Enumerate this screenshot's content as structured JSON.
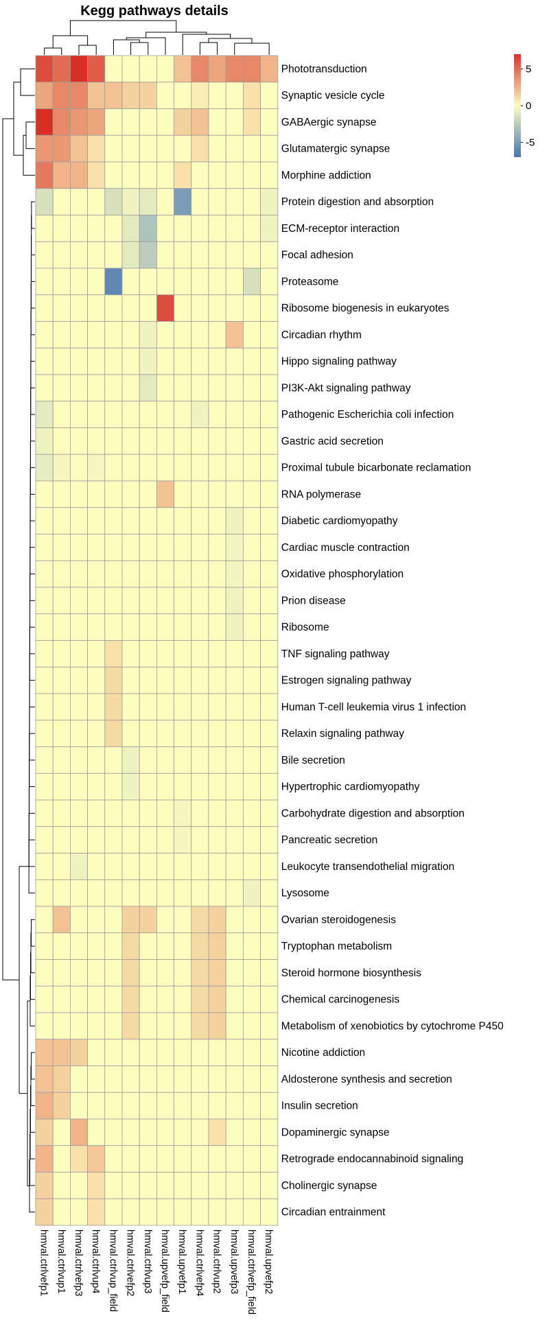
{
  "chart_data": {
    "type": "heatmap",
    "title": "Kegg pathways details",
    "columns": [
      "hmval.ctrlvefp1",
      "hmval.ctrlvup1",
      "hmval.ctrlvefp3",
      "hmval.ctrlvup4",
      "hmval.ctrlvup_field",
      "hmval.ctrlvefp2",
      "hmval.ctrlvup3",
      "hmval.upvefp_field",
      "hmval.upvefp1",
      "hmval.ctrlvefp4",
      "hmval.ctrlvup2",
      "hmval.upvefp3",
      "hmval.ctrlvefp_field",
      "hmval.upvefp2"
    ],
    "rows": [
      "Phototransduction",
      "Synaptic vesicle cycle",
      "GABAergic synapse",
      "Glutamatergic synapse",
      "Morphine addiction",
      "Protein digestion and absorption",
      "ECM-receptor interaction",
      "Focal adhesion",
      "Proteasome",
      "Ribosome biogenesis in eukaryotes",
      "Circadian rhythm",
      "Hippo signaling pathway",
      "PI3K-Akt signaling pathway",
      "Pathogenic Escherichia coli infection",
      "Gastric acid secretion",
      "Proximal tubule bicarbonate reclamation",
      "RNA polymerase",
      "Diabetic cardiomyopathy",
      "Cardiac muscle contraction",
      "Oxidative phosphorylation",
      "Prion disease",
      "Ribosome",
      "TNF signaling pathway",
      "Estrogen signaling pathway",
      "Human T-cell leukemia virus 1 infection",
      "Relaxin signaling pathway",
      "Bile secretion",
      "Hypertrophic cardiomyopathy",
      "Carbohydrate digestion and absorption",
      "Pancreatic secretion",
      "Leukocyte transendothelial migration",
      "Lysosome",
      "Ovarian steroidogenesis",
      "Tryptophan metabolism",
      "Steroid hormone biosynthesis",
      "Chemical carcinogenesis",
      "Metabolism of xenobiotics by cytochrome P450",
      "Nicotine addiction",
      "Aldosterone synthesis and secretion",
      "Insulin secretion",
      "Dopaminergic synapse",
      "Retrograde endocannabinoid signaling",
      "Cholinergic synapse",
      "Circadian entrainment"
    ],
    "values": [
      [
        6.0,
        5.0,
        7.0,
        5.5,
        0,
        0,
        0,
        0,
        2.0,
        4.0,
        3.0,
        4.0,
        4.0,
        2.5
      ],
      [
        3.0,
        4.0,
        4.0,
        2.0,
        2.0,
        1.5,
        1.5,
        0,
        0,
        0.5,
        0,
        0,
        1.0,
        0
      ],
      [
        7.0,
        4.0,
        3.5,
        3.0,
        0,
        0,
        0,
        0,
        1.5,
        2.0,
        0,
        0,
        1.0,
        0
      ],
      [
        3.5,
        3.5,
        2.0,
        1.0,
        0,
        0,
        0,
        0,
        0,
        1.0,
        0,
        0,
        0,
        0
      ],
      [
        4.5,
        2.5,
        2.5,
        1.0,
        0,
        0,
        0,
        0,
        1.0,
        0,
        0,
        0,
        0,
        0
      ],
      [
        -1.5,
        0,
        0,
        0,
        -1.5,
        -0.5,
        -1.0,
        0,
        -5.0,
        0,
        0,
        0,
        0,
        -0.5
      ],
      [
        0,
        0,
        0,
        0,
        0,
        -1.0,
        -3.0,
        0,
        0,
        0,
        0,
        0,
        0,
        -0.5
      ],
      [
        0,
        0,
        0,
        0,
        0,
        -1.0,
        -2.5,
        0,
        0,
        0,
        0,
        0,
        0,
        0
      ],
      [
        0,
        0,
        0,
        0,
        -6.0,
        0,
        0,
        0,
        0,
        0,
        0,
        0,
        -1.5,
        0
      ],
      [
        0,
        0,
        0,
        0,
        0,
        0,
        0,
        6.0,
        0,
        0,
        0,
        0,
        0,
        0
      ],
      [
        0,
        0,
        0,
        0,
        0,
        0,
        -0.5,
        0,
        0,
        0,
        0,
        2.0,
        0,
        0
      ],
      [
        0,
        0,
        0,
        0,
        0,
        0,
        -0.5,
        0,
        0,
        0,
        0,
        0,
        0,
        0
      ],
      [
        0,
        0,
        0,
        0,
        0,
        0,
        -1.0,
        0,
        0,
        0,
        0,
        0,
        0,
        0
      ],
      [
        -1.0,
        0,
        0,
        0,
        0,
        0,
        0,
        0,
        0,
        -0.5,
        0,
        0,
        0,
        0
      ],
      [
        -0.5,
        0,
        0,
        0,
        0,
        0,
        0,
        0,
        0,
        0,
        0,
        0,
        0,
        0
      ],
      [
        -0.8,
        -0.3,
        0,
        -0.3,
        0,
        0,
        0,
        0,
        0,
        0,
        0,
        0,
        0,
        0
      ],
      [
        0,
        0,
        0,
        0,
        0,
        0,
        0,
        2.0,
        0,
        0,
        0,
        0,
        0,
        0
      ],
      [
        0,
        0,
        0,
        0,
        0,
        0,
        0,
        0,
        0,
        0,
        0,
        -0.5,
        0,
        0
      ],
      [
        0,
        0,
        0,
        0,
        0,
        0,
        0,
        0,
        0,
        0,
        0,
        -0.4,
        0,
        0
      ],
      [
        0,
        0,
        0,
        0,
        0,
        0,
        0,
        0,
        0,
        0,
        0,
        -0.4,
        0,
        0
      ],
      [
        0,
        0,
        0,
        0,
        0,
        0,
        0,
        0,
        0,
        0,
        0,
        -0.5,
        0,
        0
      ],
      [
        0,
        0,
        0,
        0,
        0,
        0,
        0,
        0,
        0,
        0,
        0,
        -0.5,
        0,
        0
      ],
      [
        0,
        0,
        0,
        0,
        1.0,
        0,
        0,
        0,
        0,
        0,
        0,
        0,
        0,
        0
      ],
      [
        0,
        0,
        0,
        0,
        1.2,
        0,
        0,
        0,
        0,
        0,
        0,
        0,
        0,
        0
      ],
      [
        0,
        0,
        0,
        0,
        1.2,
        0,
        0,
        0,
        0,
        0,
        0,
        0,
        0,
        0
      ],
      [
        0,
        0,
        0,
        0,
        1.2,
        0,
        0,
        0,
        0,
        0,
        0,
        0,
        0,
        0
      ],
      [
        0,
        0,
        0,
        0,
        0,
        -0.5,
        0,
        0,
        0,
        0,
        0,
        0,
        0,
        0
      ],
      [
        0,
        0,
        0,
        0,
        0,
        -0.5,
        0,
        0,
        0,
        0,
        0,
        0,
        0,
        0
      ],
      [
        0,
        0,
        0,
        0,
        0,
        0,
        0,
        0,
        -0.3,
        0,
        0,
        0,
        0,
        0
      ],
      [
        0,
        0,
        0,
        0,
        0,
        0,
        0,
        0,
        -0.3,
        0,
        0,
        0,
        0,
        0
      ],
      [
        0,
        0,
        -0.5,
        0,
        0,
        0,
        0,
        0,
        0,
        0,
        0,
        0,
        0,
        0
      ],
      [
        0,
        0,
        0,
        0,
        0,
        0,
        0,
        0,
        0,
        0,
        0,
        0,
        -0.5,
        0
      ],
      [
        0,
        2.0,
        0,
        0,
        0,
        1.5,
        1.5,
        0,
        0,
        1.2,
        1.5,
        0,
        0,
        0
      ],
      [
        0,
        0,
        0,
        0,
        0,
        1.2,
        0,
        0,
        0,
        1.2,
        1.5,
        0,
        0,
        0
      ],
      [
        0,
        0,
        0,
        0,
        0,
        1.2,
        0,
        0,
        0,
        1.2,
        1.5,
        0,
        0,
        0
      ],
      [
        0,
        0,
        0,
        0,
        0,
        1.2,
        0,
        0,
        0,
        1.2,
        1.5,
        0,
        0,
        0
      ],
      [
        0,
        0,
        0,
        0,
        0,
        1.2,
        0,
        0,
        0,
        1.2,
        1.5,
        0,
        0,
        0
      ],
      [
        2.0,
        2.0,
        1.5,
        0,
        0,
        0,
        0,
        0,
        0,
        0,
        0,
        0,
        0,
        0
      ],
      [
        2.0,
        1.5,
        0,
        0,
        0,
        0,
        0,
        0,
        0,
        0,
        0,
        0,
        0,
        0
      ],
      [
        2.5,
        1.5,
        0,
        0,
        0,
        0,
        0,
        0,
        0,
        0,
        0,
        0,
        0,
        0
      ],
      [
        1.5,
        0,
        2.5,
        0,
        0,
        0,
        0,
        0,
        0,
        0,
        1.0,
        0,
        0,
        0
      ],
      [
        2.5,
        0,
        1.0,
        1.8,
        0,
        0,
        0,
        0,
        0,
        0,
        0,
        0,
        0,
        0
      ],
      [
        1.5,
        0,
        0,
        1.0,
        0,
        0,
        0,
        0,
        0,
        0,
        0,
        0,
        0,
        0
      ],
      [
        1.5,
        0,
        0,
        1.0,
        0,
        0,
        0,
        0,
        0,
        0,
        0,
        0,
        0,
        0
      ]
    ],
    "legend": {
      "position": "top-right",
      "min": -7,
      "max": 7,
      "ticks": [
        5,
        0,
        -5
      ],
      "tick_labels": [
        "5",
        "0",
        "-5"
      ],
      "colors": [
        "#4575b4",
        "#fdfdc0",
        "#d73027"
      ]
    },
    "dendrograms": {
      "rows": true,
      "columns": true
    },
    "grid": true
  }
}
